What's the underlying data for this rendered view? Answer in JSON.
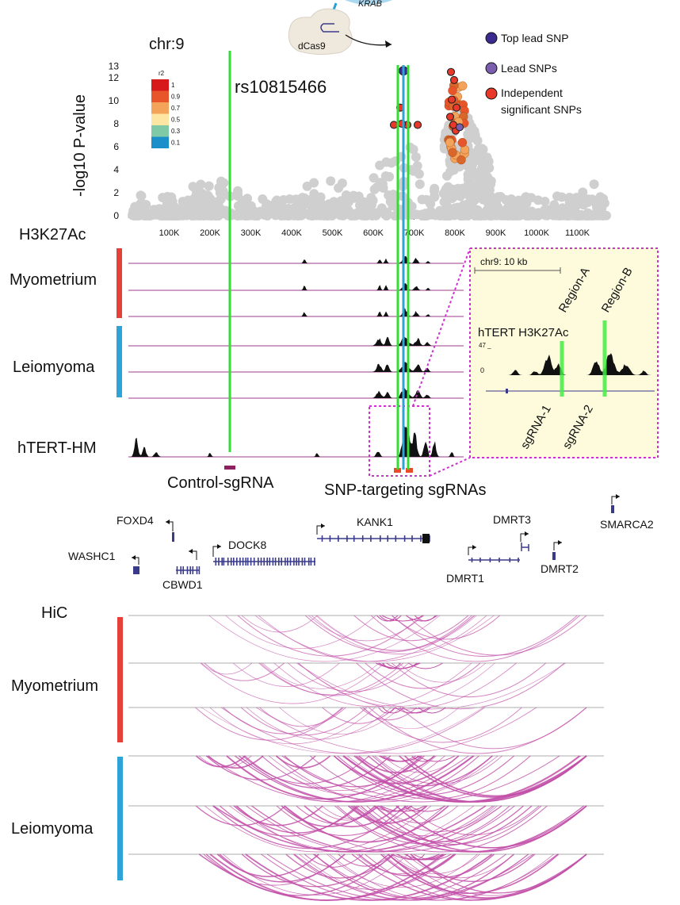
{
  "header": {
    "chromosome": "chr:9",
    "dcas9_label": "dCas9",
    "krab_label": "KRAB"
  },
  "manhattan": {
    "ylabel": "-log10 P-value",
    "yticks": [
      "0",
      "2",
      "4",
      "6",
      "8",
      "10",
      "12",
      "13"
    ],
    "xticks": [
      "100K",
      "200K",
      "300K",
      "400K",
      "500K",
      "600K",
      "700K",
      "800K",
      "900K",
      "1000K",
      "1100K"
    ],
    "snp_label": "rs10815466",
    "r2_title": "r2",
    "r2_legend": [
      {
        "label": "1",
        "color": "#d7191c"
      },
      {
        "label": "0.9",
        "color": "#e8552a"
      },
      {
        "label": "0.7",
        "color": "#f4a45a"
      },
      {
        "label": "0.5",
        "color": "#fde6a4"
      },
      {
        "label": "0.3",
        "color": "#7fc9a6"
      },
      {
        "label": "0.1",
        "color": "#1a8fc9"
      }
    ],
    "legend": [
      {
        "label": "Top lead SNP",
        "color": "#3b2a8f"
      },
      {
        "label": "Lead SNPs",
        "color": "#7b5fae"
      },
      {
        "label": "Independent",
        "color": "#e8382a"
      },
      {
        "label": "significant SNPs",
        "color": ""
      }
    ]
  },
  "tracks": {
    "title": "H3K27Ac",
    "group1": "Myometrium",
    "group2": "Leiomyoma",
    "hterthm": "hTERT-HM",
    "control_sgrna": "Control-sgRNA",
    "snp_sgrnas": "SNP-targeting sgRNAs"
  },
  "inset": {
    "scale": "chr9: 10 kb",
    "region_a": "Region-A",
    "region_b": "Region-B",
    "track_label": "hTERT H3K27Ac",
    "max": "47 _",
    "zero": "0",
    "sgrna1": "sgRNA-1",
    "sgrna2": "sgRNA-2"
  },
  "genes": [
    {
      "name": "FOXD4"
    },
    {
      "name": "WASHC1"
    },
    {
      "name": "CBWD1"
    },
    {
      "name": "DOCK8"
    },
    {
      "name": "KANK1"
    },
    {
      "name": "DMRT3"
    },
    {
      "name": "DMRT1"
    },
    {
      "name": "DMRT2"
    },
    {
      "name": "SMARCA2"
    }
  ],
  "hic": {
    "title": "HiC",
    "group1": "Myometrium",
    "group2": "Leiomyoma"
  },
  "colors": {
    "myometrium": "#e5403a",
    "leiomyoma": "#2ea3d8",
    "green": "#33dd33",
    "magenta": "#cc33cc",
    "arc": "#c24fa8",
    "track_line": "#9e3e8e",
    "grey_snp": "#cfcfcf"
  }
}
